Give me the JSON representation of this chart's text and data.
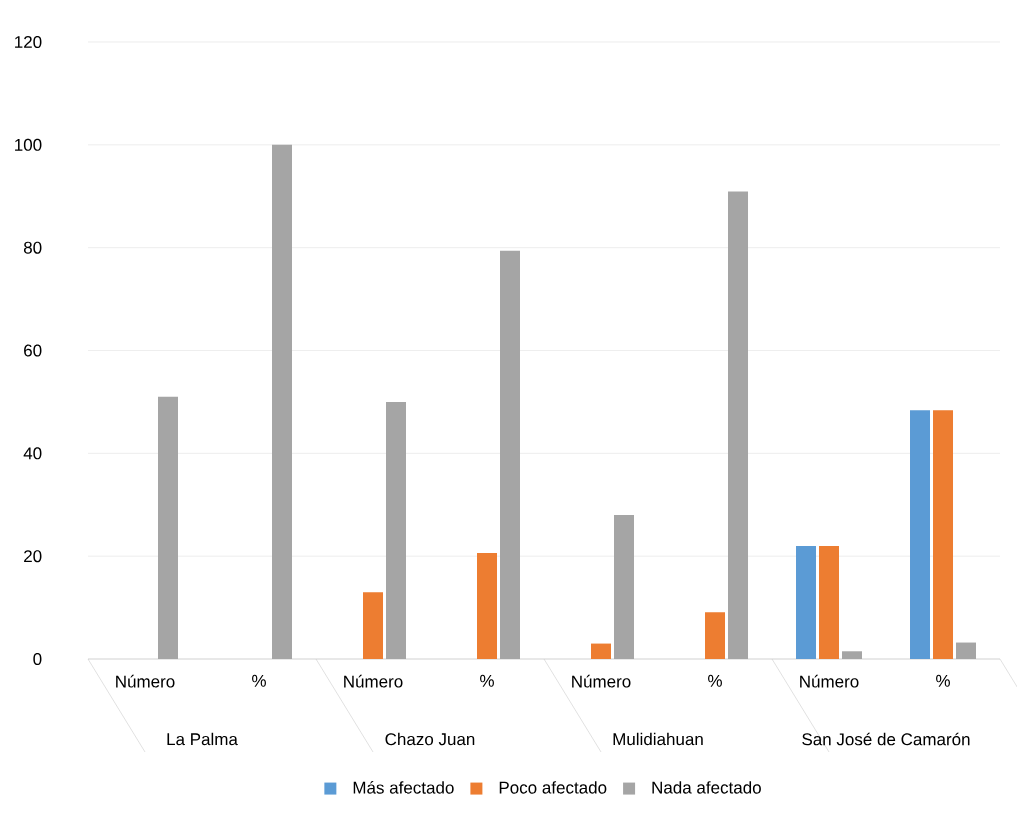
{
  "chart_data": {
    "type": "bar",
    "categories": [
      "Número",
      "%",
      "Número",
      "%",
      "Número",
      "%",
      "Número",
      "%"
    ],
    "series": [
      {
        "name": "Más afectado",
        "color": "#5b9bd5",
        "values": [
          0,
          0,
          0,
          0,
          0,
          0,
          22,
          48.4
        ]
      },
      {
        "name": "Poco afectado",
        "color": "#ed7d31",
        "values": [
          0,
          0,
          13,
          20.6,
          3,
          9.1,
          22,
          48.4
        ]
      },
      {
        "name": "Nada afectado",
        "color": "#a5a5a5",
        "values": [
          51,
          100,
          50,
          79.4,
          28,
          90.9,
          1.5,
          3.2
        ]
      }
    ],
    "annotations": [
      "La Palma",
      "Chazo Juan",
      "Mulidiahuan",
      "San José de Camarón"
    ],
    "ylim": [
      0,
      120
    ],
    "yticks": [
      0,
      20,
      40,
      60,
      80,
      100,
      120
    ],
    "grid": "y",
    "legend": "bottom"
  }
}
